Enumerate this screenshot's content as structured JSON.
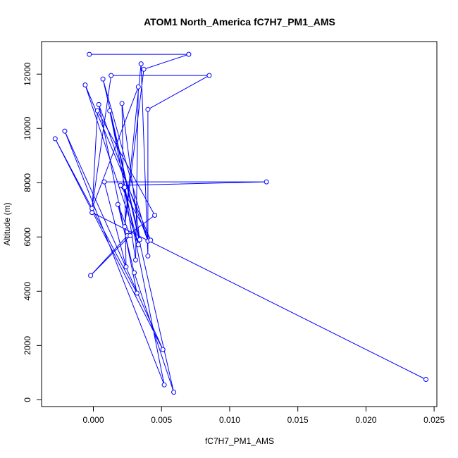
{
  "chart_data": {
    "type": "line",
    "title": "ATOM1 North_America fC7H7_PM1_AMS",
    "xlabel": "fC7H7_PM1_AMS",
    "ylabel": "Altitude (m)",
    "xlim": [
      -0.0038,
      0.0252
    ],
    "ylim": [
      -250,
      13200
    ],
    "xticks": [
      0.0,
      0.005,
      0.01,
      0.015,
      0.02,
      0.025
    ],
    "xtick_labels": [
      "0.000",
      "0.005",
      "0.010",
      "0.015",
      "0.020",
      "0.025"
    ],
    "yticks": [
      0,
      2000,
      4000,
      6000,
      8000,
      10000,
      12000
    ],
    "ytick_labels": [
      "0",
      "2000",
      "4000",
      "6000",
      "8000",
      "10000",
      "12000"
    ],
    "grid": false,
    "series": [
      {
        "color": "#0000ff",
        "marker": "open-circle",
        "points": [
          [
            0.0244,
            750
          ],
          [
            -0.0001,
            6900
          ],
          [
            0.0003,
            10650
          ],
          [
            0.0045,
            6800
          ],
          [
            0.0025,
            6050
          ],
          [
            -0.0002,
            4580
          ],
          [
            0.0027,
            6050
          ],
          [
            0.0018,
            7200
          ],
          [
            0.003,
            4680
          ],
          [
            0.0059,
            280
          ],
          [
            0.0012,
            10650
          ],
          [
            0.0052,
            550
          ],
          [
            -0.0021,
            9900
          ],
          [
            0.0051,
            1850
          ],
          [
            -0.0028,
            9620
          ],
          [
            0.0032,
            3930
          ],
          [
            0.0004,
            10880
          ],
          [
            0.004,
            5850
          ],
          [
            0.0007,
            11820
          ],
          [
            0.0034,
            5900
          ],
          [
            0.0021,
            10920
          ],
          [
            0.0022,
            7850
          ],
          [
            0.0033,
            5720
          ],
          [
            -0.0006,
            11600
          ],
          [
            0.0042,
            5880
          ],
          [
            0.002,
            7900
          ],
          [
            0.0127,
            8030
          ],
          [
            0.0008,
            8030
          ],
          [
            0.0024,
            4900
          ],
          [
            0.0023,
            7830
          ],
          [
            0.0031,
            5150
          ],
          [
            0.0033,
            11530
          ],
          [
            -0.0001,
            7050
          ],
          [
            0.0013,
            11950
          ],
          [
            0.0085,
            11950
          ],
          [
            0.004,
            10700
          ],
          [
            0.004,
            5300
          ],
          [
            0.0035,
            12380
          ],
          [
            0.0023,
            6380
          ],
          [
            0.0037,
            12180
          ],
          [
            0.007,
            12730
          ],
          [
            -0.0003,
            12730
          ]
        ]
      }
    ]
  }
}
